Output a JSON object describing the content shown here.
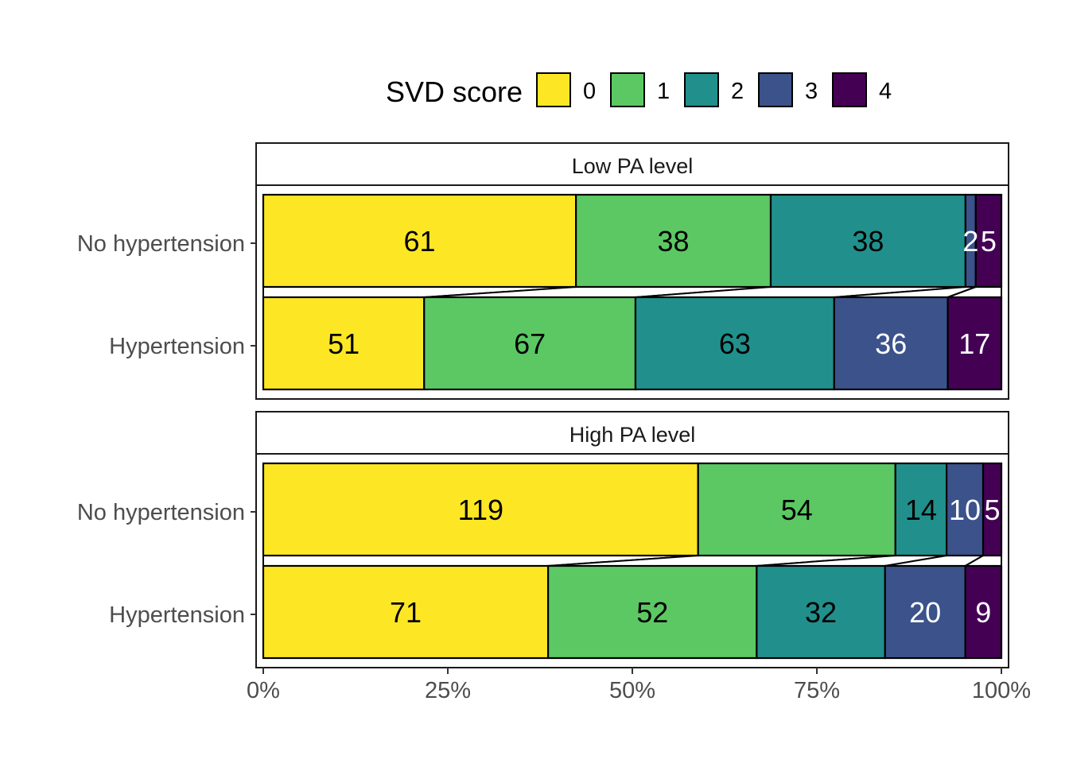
{
  "chart_data": {
    "type": "bar",
    "orientation": "horizontal",
    "stacked": "percent",
    "legend": {
      "title": "SVD score",
      "position": "top",
      "entries": [
        "0",
        "1",
        "2",
        "3",
        "4"
      ]
    },
    "colors": [
      "#FDE725",
      "#5CC863",
      "#21908C",
      "#3B528B",
      "#440154"
    ],
    "label_colors": [
      "#000000",
      "#000000",
      "#000000",
      "#ffffff",
      "#ffffff"
    ],
    "categories": [
      "No hypertension",
      "Hypertension"
    ],
    "x_ticks": [
      "0%",
      "25%",
      "50%",
      "75%",
      "100%"
    ],
    "xlim": [
      0,
      100
    ],
    "panels": [
      {
        "title": "Low PA level",
        "rows": [
          {
            "label": "No hypertension",
            "counts": [
              61,
              38,
              38,
              2,
              5
            ]
          },
          {
            "label": "Hypertension",
            "counts": [
              51,
              67,
              63,
              36,
              17
            ]
          }
        ]
      },
      {
        "title": "High PA level",
        "rows": [
          {
            "label": "No hypertension",
            "counts": [
              119,
              54,
              14,
              10,
              5
            ]
          },
          {
            "label": "Hypertension",
            "counts": [
              71,
              52,
              32,
              20,
              9
            ]
          }
        ]
      }
    ]
  }
}
